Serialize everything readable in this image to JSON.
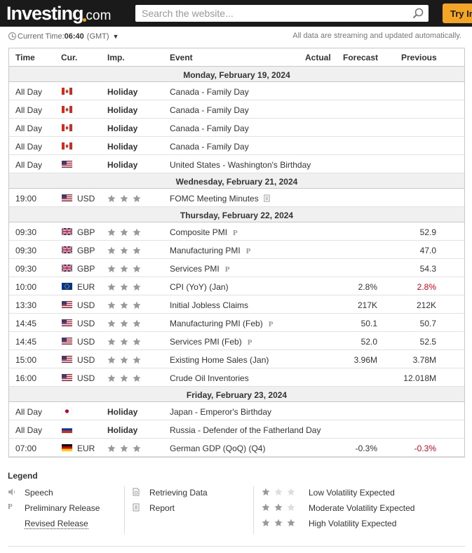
{
  "header": {
    "logo_text": "Investing",
    "logo_suffix": "com",
    "search_placeholder": "Search the website...",
    "try_button": "Try In"
  },
  "timebar": {
    "label": "Current Time:",
    "time": "06:40",
    "zone": "(GMT)",
    "note": "All data are streaming and updated automatically."
  },
  "columns": {
    "time": "Time",
    "cur": "Cur.",
    "imp": "Imp.",
    "event": "Event",
    "actual": "Actual",
    "forecast": "Forecast",
    "previous": "Previous"
  },
  "colors": {
    "accent": "#f4a523",
    "negative": "#e0001b",
    "topbar": "#1a1a1a"
  },
  "days": [
    {
      "label": "Monday, February 19, 2024",
      "rows": [
        {
          "time": "All Day",
          "flag": "ca",
          "cur": "",
          "imp": "Holiday",
          "event": "Canada - Family Day",
          "forecast": "",
          "previous": ""
        },
        {
          "time": "All Day",
          "flag": "ca",
          "cur": "",
          "imp": "Holiday",
          "event": "Canada - Family Day",
          "forecast": "",
          "previous": ""
        },
        {
          "time": "All Day",
          "flag": "ca",
          "cur": "",
          "imp": "Holiday",
          "event": "Canada - Family Day",
          "forecast": "",
          "previous": ""
        },
        {
          "time": "All Day",
          "flag": "ca",
          "cur": "",
          "imp": "Holiday",
          "event": "Canada - Family Day",
          "forecast": "",
          "previous": ""
        },
        {
          "time": "All Day",
          "flag": "us",
          "cur": "",
          "imp": "Holiday",
          "event": "United States - Washington's Birthday",
          "forecast": "",
          "previous": ""
        }
      ]
    },
    {
      "label": "Wednesday, February 21, 2024",
      "rows": [
        {
          "time": "19:00",
          "flag": "us",
          "cur": "USD",
          "stars": 3,
          "event": "FOMC Meeting Minutes",
          "icon": "report-icon",
          "forecast": "",
          "previous": ""
        }
      ]
    },
    {
      "label": "Thursday, February 22, 2024",
      "rows": [
        {
          "time": "09:30",
          "flag": "gb",
          "cur": "GBP",
          "stars": 3,
          "event": "Composite PMI",
          "icon": "preliminary-icon",
          "forecast": "",
          "previous": "52.9"
        },
        {
          "time": "09:30",
          "flag": "gb",
          "cur": "GBP",
          "stars": 3,
          "event": "Manufacturing PMI",
          "icon": "preliminary-icon",
          "forecast": "",
          "previous": "47.0"
        },
        {
          "time": "09:30",
          "flag": "gb",
          "cur": "GBP",
          "stars": 3,
          "event": "Services PMI",
          "icon": "preliminary-icon",
          "forecast": "",
          "previous": "54.3"
        },
        {
          "time": "10:00",
          "flag": "eu",
          "cur": "EUR",
          "stars": 3,
          "event": "CPI (YoY) (Jan)",
          "forecast": "2.8%",
          "previous": "2.8%",
          "previous_red": true
        },
        {
          "time": "13:30",
          "flag": "us",
          "cur": "USD",
          "stars": 3,
          "event": "Initial Jobless Claims",
          "forecast": "217K",
          "previous": "212K"
        },
        {
          "time": "14:45",
          "flag": "us",
          "cur": "USD",
          "stars": 3,
          "event": "Manufacturing PMI (Feb)",
          "icon": "preliminary-icon",
          "forecast": "50.1",
          "previous": "50.7"
        },
        {
          "time": "14:45",
          "flag": "us",
          "cur": "USD",
          "stars": 3,
          "event": "Services PMI (Feb)",
          "icon": "preliminary-icon",
          "forecast": "52.0",
          "previous": "52.5"
        },
        {
          "time": "15:00",
          "flag": "us",
          "cur": "USD",
          "stars": 3,
          "event": "Existing Home Sales (Jan)",
          "forecast": "3.96M",
          "previous": "3.78M"
        },
        {
          "time": "16:00",
          "flag": "us",
          "cur": "USD",
          "stars": 3,
          "event": "Crude Oil Inventories",
          "forecast": "",
          "previous": "12.018M"
        }
      ]
    },
    {
      "label": "Friday, February 23, 2024",
      "rows": [
        {
          "time": "All Day",
          "flag": "jp",
          "cur": "",
          "imp": "Holiday",
          "event": "Japan - Emperor's Birthday",
          "forecast": "",
          "previous": ""
        },
        {
          "time": "All Day",
          "flag": "ru",
          "cur": "",
          "imp": "Holiday",
          "event": "Russia - Defender of the Fatherland Day",
          "forecast": "",
          "previous": ""
        },
        {
          "time": "07:00",
          "flag": "de",
          "cur": "EUR",
          "stars": 3,
          "event": "German GDP (QoQ) (Q4)",
          "forecast": "-0.3%",
          "previous": "-0.3%",
          "previous_red": true
        }
      ]
    }
  ],
  "legend": {
    "title": "Legend",
    "speech": "Speech",
    "preliminary": "Preliminary Release",
    "revised": "Revised Release",
    "retrieving": "Retrieving Data",
    "report": "Report",
    "low": "Low Volatility Expected",
    "moderate": "Moderate Volatility Expected",
    "high": "High Volatility Expected"
  }
}
